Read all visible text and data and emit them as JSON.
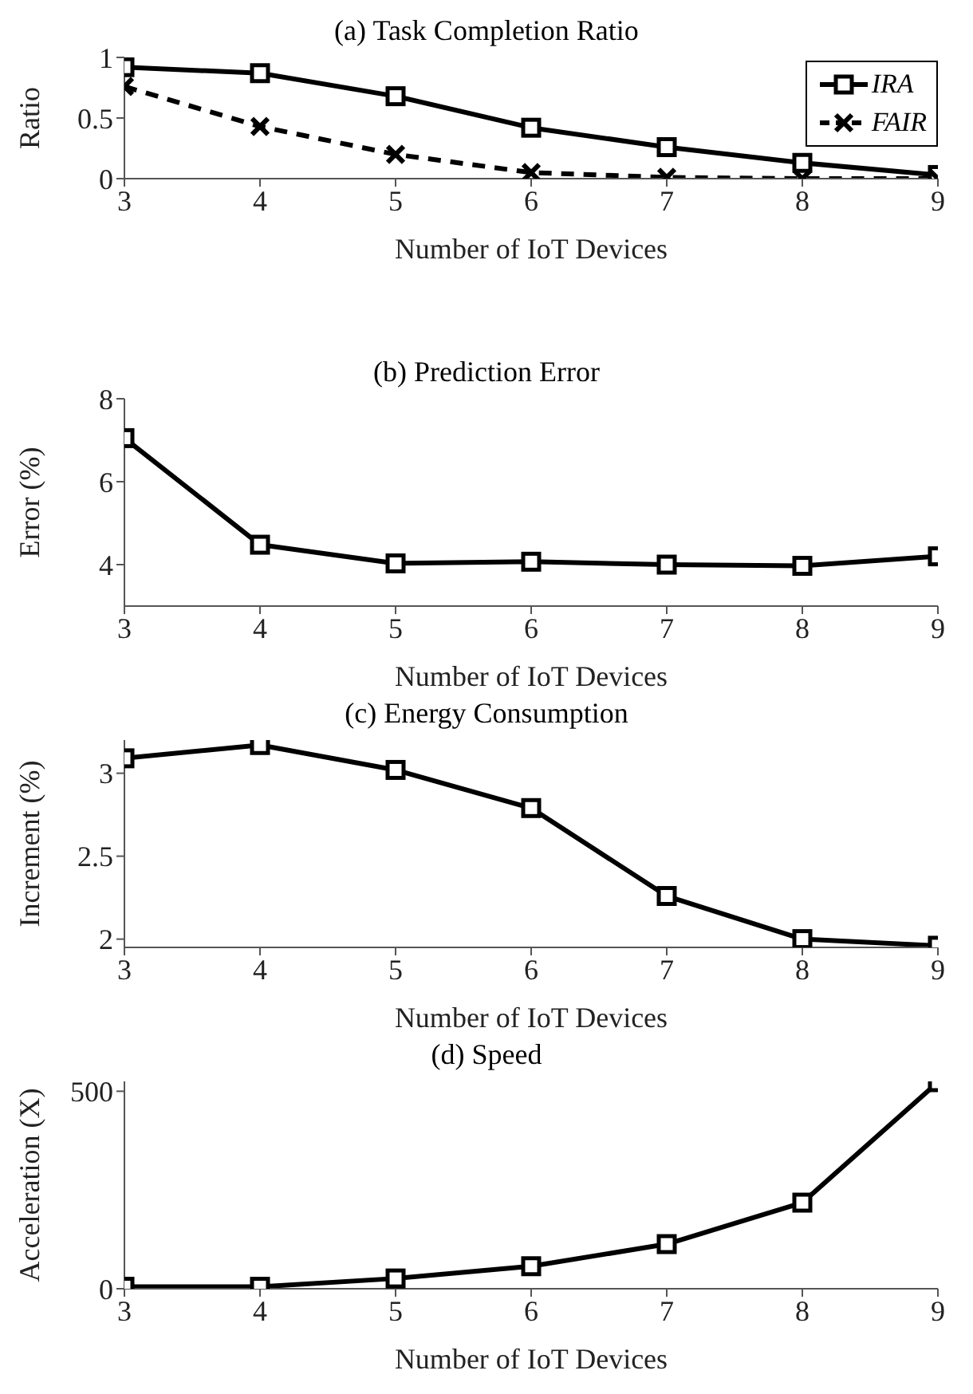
{
  "chart_data": [
    {
      "type": "line",
      "title": "(a) Task Completion Ratio",
      "xlabel": "Number of IoT Devices",
      "ylabel": "Ratio",
      "x": [
        3,
        4,
        5,
        6,
        7,
        8,
        9
      ],
      "xlim": [
        3,
        9
      ],
      "xticks": [
        3,
        4,
        5,
        6,
        7,
        8,
        9
      ],
      "ylim": [
        0,
        1
      ],
      "yticks": [
        0,
        0.5,
        1
      ],
      "grid": false,
      "legend": "top right",
      "series": [
        {
          "name": "IRA",
          "color": "#000000",
          "marker": "square",
          "line_style": "solid",
          "values": [
            0.92,
            0.87,
            0.68,
            0.42,
            0.26,
            0.13,
            0.03
          ]
        },
        {
          "name": "FAIR",
          "color": "#000000",
          "marker": "cross",
          "line_style": "dashed",
          "values": [
            0.76,
            0.43,
            0.2,
            0.05,
            0.01,
            0,
            0
          ]
        }
      ]
    },
    {
      "type": "line",
      "title": "(b) Prediction Error",
      "xlabel": "Number of IoT Devices",
      "ylabel": "Error (%)",
      "x": [
        3,
        4,
        5,
        6,
        7,
        8,
        9
      ],
      "xlim": [
        3,
        9
      ],
      "xticks": [
        3,
        4,
        5,
        6,
        7,
        8,
        9
      ],
      "ylim": [
        3,
        8
      ],
      "yticks": [
        4,
        6,
        8
      ],
      "grid": false,
      "marker": "square",
      "line_style": "solid",
      "series": [
        {
          "color": "#000000",
          "values": [
            7.05,
            4.48,
            4.03,
            4.07,
            4.0,
            3.97,
            4.2
          ]
        }
      ]
    },
    {
      "type": "line",
      "title": "(c) Energy Consumption",
      "xlabel": "Number of IoT Devices",
      "ylabel": "Increment (%)",
      "x": [
        3,
        4,
        5,
        6,
        7,
        8,
        9
      ],
      "xlim": [
        3,
        9
      ],
      "xticks": [
        3,
        4,
        5,
        6,
        7,
        8,
        9
      ],
      "ylim": [
        1.95,
        3.2
      ],
      "yticks": [
        2,
        2.5,
        3
      ],
      "grid": false,
      "marker": "square",
      "line_style": "solid",
      "series": [
        {
          "color": "#000000",
          "values": [
            3.09,
            3.17,
            3.02,
            2.79,
            2.26,
            2.0,
            1.96
          ]
        }
      ]
    },
    {
      "type": "line",
      "title": "(d) Speed",
      "xlabel": "Number of IoT Devices",
      "ylabel": "Acceleration (X)",
      "x": [
        3,
        4,
        5,
        6,
        7,
        8,
        9
      ],
      "xlim": [
        3,
        9
      ],
      "xticks": [
        3,
        4,
        5,
        6,
        7,
        8,
        9
      ],
      "ylim": [
        0,
        525
      ],
      "yticks": [
        0,
        500
      ],
      "grid": false,
      "marker": "square",
      "line_style": "solid",
      "series": [
        {
          "color": "#000000",
          "values": [
            5,
            5,
            26,
            57,
            113,
            218,
            523
          ]
        }
      ]
    }
  ]
}
